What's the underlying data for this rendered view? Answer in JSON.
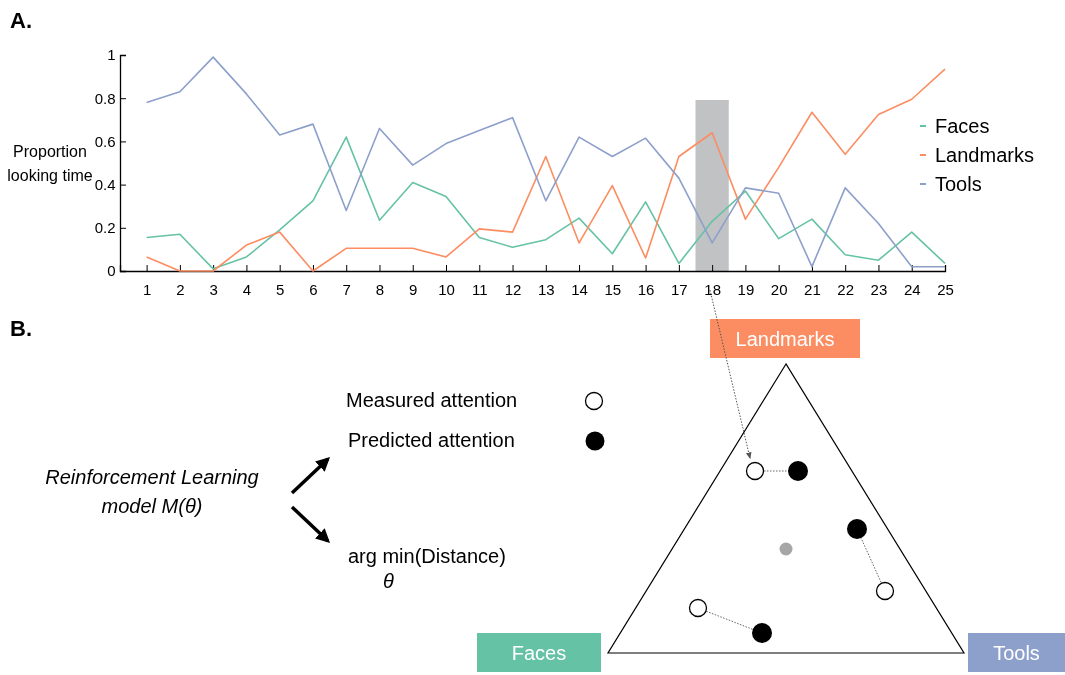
{
  "chart_data": [
    {
      "type": "line",
      "title": "A.",
      "ylabel": "Proportion looking time",
      "x": [
        1,
        2,
        3,
        4,
        5,
        6,
        7,
        8,
        9,
        10,
        11,
        12,
        13,
        14,
        15,
        16,
        17,
        18,
        19,
        20,
        21,
        22,
        23,
        24,
        25
      ],
      "xlim": [
        0.2,
        25
      ],
      "xticks": [
        1,
        2,
        3,
        4,
        5,
        6,
        7,
        8,
        9,
        10,
        11,
        12,
        13,
        14,
        15,
        16,
        17,
        18,
        19,
        20,
        21,
        22,
        23,
        24,
        25
      ],
      "ylim": [
        0,
        1
      ],
      "yticks": [
        0,
        0.2,
        0.4,
        0.6,
        0.8,
        1
      ],
      "series": [
        {
          "name": "Faces",
          "color": "#66c2a5",
          "values": [
            0.155,
            0.17,
            0.01,
            0.065,
            0.19,
            0.325,
            0.62,
            0.235,
            0.41,
            0.345,
            0.155,
            0.11,
            0.145,
            0.245,
            0.08,
            0.32,
            0.035,
            0.23,
            0.37,
            0.15,
            0.24,
            0.075,
            0.05,
            0.18,
            0.035
          ]
        },
        {
          "name": "Landmarks",
          "color": "#fc8d62",
          "values": [
            0.065,
            0,
            0,
            0.12,
            0.18,
            0,
            0.105,
            0.105,
            0.105,
            0.065,
            0.195,
            0.18,
            0.53,
            0.13,
            0.395,
            0.06,
            0.53,
            0.64,
            0.24,
            0.48,
            0.735,
            0.54,
            0.725,
            0.795,
            0.935
          ]
        },
        {
          "name": "Tools",
          "color": "#8da0cb",
          "values": [
            0.78,
            0.83,
            0.99,
            0.82,
            0.63,
            0.68,
            0.28,
            0.66,
            0.49,
            0.59,
            0.65,
            0.71,
            0.325,
            0.62,
            0.53,
            0.615,
            0.43,
            0.13,
            0.385,
            0.36,
            0.02,
            0.385,
            0.22,
            0.02,
            0.02
          ]
        }
      ],
      "bands": [
        {
          "axis": "x",
          "from": 17.5,
          "to": 18.5,
          "color": "#b9bbbe"
        }
      ],
      "legend": "right"
    },
    {
      "type": "other",
      "title": "B.",
      "annotations": [
        "Measured attention",
        "Predicted attention",
        "Reinforcement Learning model M(θ)",
        "arg min(Distance)",
        "θ",
        "Landmarks",
        "Faces",
        "Tools"
      ]
    }
  ]
}
